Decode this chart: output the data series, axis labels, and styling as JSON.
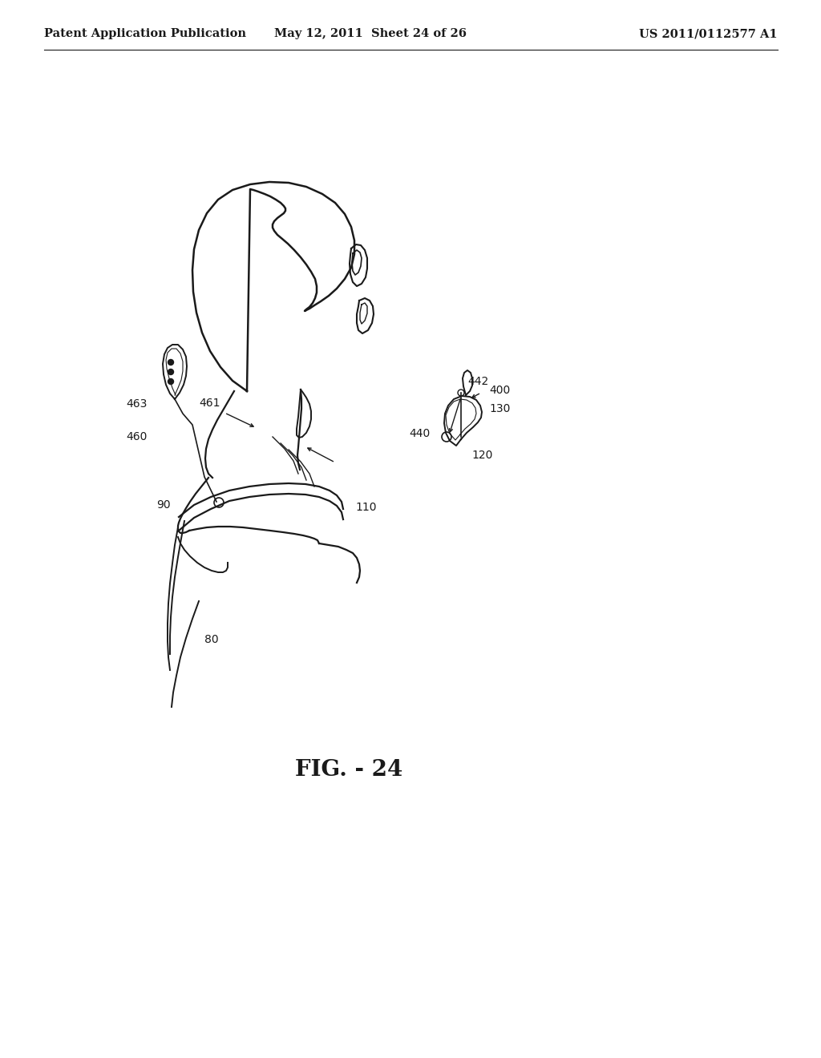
{
  "background_color": "#ffffff",
  "header_left": "Patent Application Publication",
  "header_mid": "May 12, 2011  Sheet 24 of 26",
  "header_right": "US 2011/0112577 A1",
  "figure_caption": "FIG. - 24",
  "line_color": "#1a1a1a",
  "header_fontsize": 10.5,
  "label_fontsize": 10,
  "caption_fontsize": 20
}
